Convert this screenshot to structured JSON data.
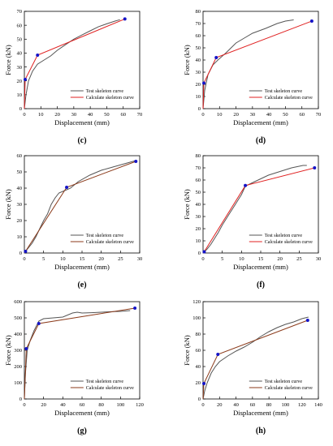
{
  "chart_data": [
    {
      "type": "line",
      "panel_label": "(c)",
      "xlabel": "Displacement (mm)",
      "ylabel": "Force (kN)",
      "xlim": [
        0,
        70
      ],
      "ylim": [
        0,
        70
      ],
      "xticks": [
        0,
        10,
        20,
        30,
        40,
        50,
        60,
        70
      ],
      "yticks": [
        0,
        10,
        20,
        30,
        40,
        50,
        60,
        70
      ],
      "legend_position": "bottom-right",
      "series": [
        {
          "name": "Test skeleton curve",
          "color": "#555555",
          "markers": false,
          "x": [
            0,
            1,
            2.5,
            5,
            8,
            12,
            16,
            20,
            25,
            30,
            35,
            40,
            45,
            50,
            55,
            58
          ],
          "y": [
            0,
            10,
            20,
            27,
            32,
            35,
            38,
            42,
            46,
            50,
            53,
            56,
            59,
            61,
            63,
            64
          ]
        },
        {
          "name": "Calculate skeleton curve",
          "color": "#e02020",
          "markers": true,
          "x": [
            0,
            0.5,
            8,
            61
          ],
          "y": [
            0,
            21,
            38.5,
            64.5
          ]
        }
      ]
    },
    {
      "type": "line",
      "panel_label": "(d)",
      "xlabel": "Displacement (mm)",
      "ylabel": "Force (kN)",
      "xlim": [
        0,
        70
      ],
      "ylim": [
        0,
        80
      ],
      "xticks": [
        0,
        10,
        20,
        30,
        40,
        50,
        60,
        70
      ],
      "yticks": [
        0,
        10,
        20,
        30,
        40,
        50,
        60,
        70,
        80
      ],
      "legend_position": "bottom-right",
      "series": [
        {
          "name": "Test skeleton curve",
          "color": "#555555",
          "markers": false,
          "x": [
            0,
            1,
            3,
            6,
            9,
            14,
            20,
            25,
            30,
            38,
            45,
            50,
            55
          ],
          "y": [
            0,
            15,
            28,
            36,
            40,
            46,
            54,
            58,
            62,
            66,
            70,
            72,
            73
          ]
        },
        {
          "name": "Calculate skeleton curve",
          "color": "#e02020",
          "markers": true,
          "x": [
            0,
            0.5,
            8,
            66
          ],
          "y": [
            0,
            21,
            42,
            72
          ]
        }
      ]
    },
    {
      "type": "line",
      "panel_label": "(e)",
      "xlabel": "Displacement (mm)",
      "ylabel": "Force (kN)",
      "xlim": [
        0,
        30
      ],
      "ylim": [
        0,
        60
      ],
      "xticks": [
        0,
        5,
        10,
        15,
        20,
        25,
        30
      ],
      "yticks": [
        0,
        10,
        20,
        30,
        40,
        50,
        60
      ],
      "legend_position": "bottom-right",
      "series": [
        {
          "name": "Test skeleton curve",
          "color": "#555555",
          "markers": false,
          "x": [
            0,
            1,
            2,
            3,
            4,
            5,
            6,
            7,
            8,
            9,
            10,
            11,
            12,
            14,
            17,
            20,
            23,
            26,
            29
          ],
          "y": [
            0,
            3,
            6,
            10,
            15,
            20,
            24,
            30,
            34,
            37,
            38,
            39,
            40,
            44,
            48,
            51,
            53,
            55,
            57
          ]
        },
        {
          "name": "Calculate skeleton curve",
          "color": "#8b3a1a",
          "markers": true,
          "x": [
            0,
            0.3,
            11,
            29
          ],
          "y": [
            0,
            1,
            40.5,
            56.5
          ]
        }
      ]
    },
    {
      "type": "line",
      "panel_label": "(f)",
      "xlabel": "Displacement (mm)",
      "ylabel": "Force (kN)",
      "xlim": [
        0,
        30
      ],
      "ylim": [
        0,
        80
      ],
      "xticks": [
        0,
        5,
        10,
        15,
        20,
        25,
        30
      ],
      "yticks": [
        0,
        10,
        20,
        30,
        40,
        50,
        60,
        70,
        80
      ],
      "legend_position": "bottom-right",
      "series": [
        {
          "name": "Test skeleton curve",
          "color": "#555555",
          "markers": false,
          "x": [
            0,
            1,
            2,
            3,
            4,
            5,
            6,
            7,
            8,
            9,
            10,
            11,
            13,
            15,
            17,
            20,
            23,
            26,
            27
          ],
          "y": [
            0,
            3,
            7,
            12,
            17,
            23,
            28,
            33,
            38,
            43,
            48,
            55,
            58,
            61,
            64,
            67,
            70,
            72,
            72
          ]
        },
        {
          "name": "Calculate skeleton curve",
          "color": "#e02020",
          "markers": true,
          "x": [
            0,
            0.3,
            11,
            29
          ],
          "y": [
            0,
            1,
            55.5,
            70
          ]
        }
      ]
    },
    {
      "type": "line",
      "panel_label": "(g)",
      "xlabel": "Displacement (mm)",
      "ylabel": "Force (kN)",
      "xlim": [
        0,
        120
      ],
      "ylim": [
        0,
        600
      ],
      "xticks": [
        0,
        20,
        40,
        60,
        80,
        100,
        120
      ],
      "yticks": [
        0,
        100,
        200,
        300,
        400,
        500,
        600
      ],
      "legend_position": "bottom-right",
      "series": [
        {
          "name": "Test skeleton curve",
          "color": "#555555",
          "markers": false,
          "x": [
            0,
            1,
            3,
            6,
            10,
            15,
            20,
            30,
            40,
            50,
            55,
            60,
            70,
            80,
            90,
            100,
            110
          ],
          "y": [
            0,
            150,
            300,
            360,
            420,
            480,
            495,
            500,
            505,
            530,
            535,
            530,
            532,
            535,
            538,
            540,
            545
          ]
        },
        {
          "name": "Calculate skeleton curve",
          "color": "#8b3a1a",
          "markers": true,
          "x": [
            0,
            2,
            15,
            115
          ],
          "y": [
            0,
            310,
            465,
            560
          ]
        }
      ]
    },
    {
      "type": "line",
      "panel_label": "(h)",
      "xlabel": "Displacement (mm)",
      "ylabel": "Force (kN)",
      "xlim": [
        0,
        140
      ],
      "ylim": [
        0,
        120
      ],
      "xticks": [
        0,
        20,
        40,
        60,
        80,
        100,
        120,
        140
      ],
      "yticks": [
        0,
        20,
        40,
        60,
        80,
        100,
        120
      ],
      "legend_position": "bottom-right",
      "series": [
        {
          "name": "Test skeleton curve",
          "color": "#555555",
          "markers": false,
          "x": [
            0,
            2,
            5,
            10,
            15,
            20,
            30,
            40,
            50,
            60,
            70,
            80,
            90,
            100,
            110,
            120,
            128
          ],
          "y": [
            0,
            10,
            20,
            32,
            40,
            46,
            53,
            59,
            64,
            70,
            77,
            83,
            88,
            92,
            95,
            99,
            101
          ]
        },
        {
          "name": "Calculate skeleton curve",
          "color": "#8b3a1a",
          "markers": true,
          "x": [
            0,
            1,
            18,
            127
          ],
          "y": [
            0,
            19,
            55,
            97
          ]
        }
      ]
    }
  ],
  "style": {
    "axis_color": "#000000",
    "marker_color": "#1414c8"
  }
}
